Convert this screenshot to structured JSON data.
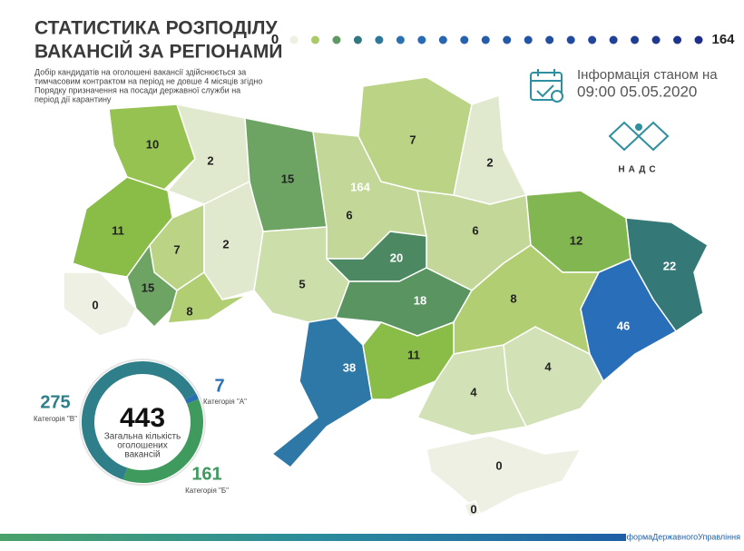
{
  "header": {
    "title": [
      "СТАТИСТИКА РОЗПОДІЛУ",
      "ВАКАНСІЙ ЗА РЕГІОНАМИ"
    ],
    "subtitle": [
      "Добір кандидатів на оголошені вакансії здійснюється за",
      "тимчасовим контрактом на період не довше 4 місяців згідно",
      "Порядку призначення на посади державної служби на",
      "період дії карантину"
    ]
  },
  "scale": {
    "min": 0,
    "max": 164
  },
  "info": {
    "label": "Інформація станом на",
    "datetime": "09:00 05.05.2020"
  },
  "logo": "НАДС",
  "regions": [
    10,
    2,
    15,
    164,
    6,
    7,
    2,
    11,
    7,
    2,
    6,
    12,
    22,
    0,
    15,
    8,
    5,
    20,
    18,
    8,
    46,
    38,
    11,
    4,
    4,
    0,
    0
  ],
  "summary": {
    "total": 443,
    "total_label": [
      "Загальна кількість",
      "оголошених",
      "вакансій"
    ],
    "categories": [
      {
        "label": "Категорія \"А\"",
        "value": 7
      },
      {
        "label": "Категорія \"Б\"",
        "value": 161
      },
      {
        "label": "Категорія \"В\"",
        "value": 275
      }
    ]
  },
  "footer": "#РеформаДержавногоУправління"
}
